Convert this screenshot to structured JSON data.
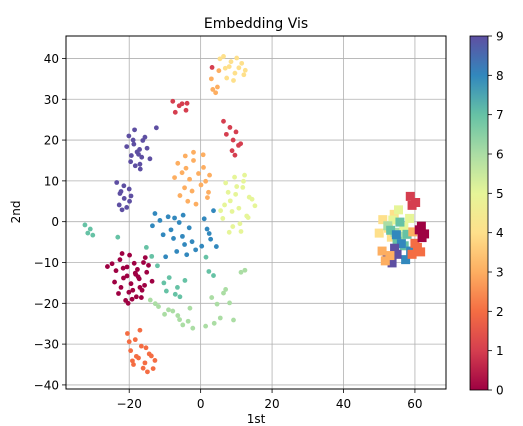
{
  "chart_data": {
    "type": "scatter",
    "title": "Embedding Vis",
    "xlabel": "1st",
    "ylabel": "2nd",
    "xlim": [
      -37.7,
      68.7
    ],
    "ylim": [
      -41.0,
      45.5
    ],
    "xticks": [
      -20,
      0,
      20,
      40,
      60
    ],
    "yticks": [
      -40,
      -30,
      -20,
      -10,
      0,
      10,
      20,
      30,
      40
    ],
    "grid": true,
    "colormap": "Spectral",
    "colorbar": {
      "min": 0,
      "max": 9,
      "ticks": [
        0,
        1,
        2,
        3,
        4,
        5,
        6,
        7,
        8,
        9
      ]
    },
    "palette": [
      "#9e0142",
      "#d53e4f",
      "#f46d43",
      "#fdae61",
      "#fee08b",
      "#e6f598",
      "#abdda4",
      "#66c2a5",
      "#3288bd",
      "#5e4fa2"
    ],
    "point_series": [
      {
        "label": 9,
        "marker": "circle",
        "x": [
          -18.5,
          -16.2,
          -19.4,
          -17.0,
          -15.0,
          -20.1,
          -17.8,
          -16.9,
          -14.2,
          -18.7,
          -19.6,
          -17.4,
          -15.6,
          -20.7,
          -18.3,
          -16.5,
          -17.1,
          -18.9,
          -21.5,
          -19.5,
          -22.8,
          -23.5,
          -20.7,
          -21.4,
          -22.3,
          -20.0,
          -22.0,
          -19.9,
          -22.6,
          -12.4
        ],
        "y": [
          22.5,
          19.9,
          16.2,
          14.1,
          18.0,
          21.0,
          17.1,
          12.9,
          15.4,
          19.0,
          14.7,
          16.5,
          20.7,
          18.4,
          13.7,
          15.8,
          17.7,
          20.0,
          8.8,
          6.3,
          4.1,
          9.6,
          3.5,
          5.7,
          7.4,
          8.0,
          2.9,
          5.0,
          6.9,
          23.0
        ]
      },
      {
        "label": 8,
        "marker": "circle",
        "x": [
          -12.8,
          -9.1,
          -6.0,
          -3.2,
          -10.5,
          -7.6,
          -4.5,
          -1.4,
          -11.4,
          -8.3,
          -5.1,
          -2.4,
          0.3,
          -6.7,
          -3.9,
          1.8,
          2.8,
          4.4,
          1.0,
          3.6,
          -9.8,
          -4.9,
          -13.5,
          2.4,
          -7.3
        ],
        "y": [
          2.0,
          1.2,
          -0.2,
          -1.5,
          -3.2,
          -4.1,
          -5.6,
          -6.9,
          0.3,
          -2.0,
          -3.6,
          -4.9,
          -6.0,
          -7.3,
          -8.1,
          -1.8,
          -4.3,
          -6.1,
          0.7,
          2.7,
          -8.6,
          1.6,
          -1.0,
          -2.9,
          0.9
        ]
      },
      {
        "label": 7,
        "marker": "circle",
        "x": [
          -32.4,
          -30.9,
          -31.6,
          -30.2,
          -23.2,
          -15.2,
          -12.1,
          -8.8,
          -6.5,
          -10.3,
          -7.1,
          -4.4,
          -9.6,
          -5.8,
          -13.7,
          2.3,
          3.6,
          1.5
        ],
        "y": [
          -0.8,
          -1.8,
          -2.8,
          -3.3,
          -3.8,
          -6.3,
          -10.8,
          -13.7,
          -16.1,
          -15.0,
          -17.8,
          -14.4,
          -17.0,
          -18.4,
          -8.5,
          -12.2,
          -13.2,
          -8.7
        ]
      },
      {
        "label": 6,
        "marker": "circle",
        "x": [
          -14.1,
          -11.8,
          -9.0,
          -6.4,
          -3.5,
          -12.7,
          -7.8,
          -5.0,
          -2.2,
          -10.1,
          -5.9,
          -3.0,
          3.1,
          4.6,
          6.4,
          8.1,
          5.5,
          3.8,
          7.0,
          1.4,
          11.3,
          12.4,
          9.2
        ],
        "y": [
          -19.2,
          -20.8,
          -21.6,
          -23.0,
          -24.4,
          -20.1,
          -21.9,
          -25.3,
          -26.1,
          -22.7,
          -24.0,
          -21.2,
          -18.6,
          -20.2,
          -17.5,
          -19.9,
          -23.6,
          -24.9,
          -16.6,
          -25.6,
          -12.4,
          -11.9,
          -24.1
        ]
      },
      {
        "label": 5,
        "marker": "circle",
        "x": [
          7.0,
          9.5,
          11.8,
          13.6,
          8.3,
          10.7,
          12.9,
          15.2,
          6.2,
          9.0,
          11.3,
          14.4,
          7.7,
          10.1,
          12.3,
          8.8,
          11.0,
          13.3,
          6.7,
          9.8,
          5.6,
          12.0,
          8.0
        ],
        "y": [
          9.5,
          10.9,
          8.4,
          6.0,
          5.1,
          3.3,
          1.4,
          3.9,
          0.8,
          -1.2,
          -2.4,
          5.5,
          7.2,
          8.6,
          11.4,
          2.5,
          -0.5,
          1.0,
          4.1,
          6.7,
          2.7,
          9.9,
          -2.6
        ]
      },
      {
        "label": 4,
        "marker": "circle",
        "x": [
          6.4,
          8.5,
          10.7,
          12.1,
          7.3,
          9.6,
          11.5,
          8.0,
          10.1,
          12.5,
          6.9,
          9.2,
          5.4
        ],
        "y": [
          40.5,
          39.2,
          37.7,
          36.0,
          35.2,
          36.4,
          38.8,
          38.0,
          40.1,
          37.1,
          37.6,
          34.6,
          39.9
        ]
      },
      {
        "label": 3,
        "marker": "circle",
        "x": [
          -6.4,
          -4.3,
          -2.0,
          0.8,
          2.5,
          -5.2,
          -3.1,
          -0.6,
          1.4,
          -7.3,
          -4.5,
          -2.4,
          0.1,
          -5.8,
          -3.6,
          -1.3,
          1.9,
          -4.1,
          -2.0,
          0.7,
          2.2,
          3.0,
          4.7,
          4.2,
          3.4,
          5.1
        ],
        "y": [
          14.3,
          16.1,
          15.0,
          13.3,
          11.4,
          12.0,
          10.4,
          11.8,
          9.9,
          10.8,
          8.3,
          7.5,
          9.0,
          6.4,
          5.0,
          4.3,
          5.9,
          13.1,
          17.0,
          16.4,
          7.2,
          35.0,
          33.0,
          31.6,
          32.4,
          37.0
        ]
      },
      {
        "label": 2,
        "marker": "circle",
        "x": [
          -20.5,
          -18.3,
          -16.6,
          -14.4,
          -19.6,
          -17.4,
          -15.6,
          -13.8,
          -18.8,
          -16.1,
          -14.9,
          -20.0,
          -17.0,
          -12.8,
          -15.3,
          -18.0,
          -13.3,
          -19.1
        ],
        "y": [
          -27.4,
          -28.9,
          -30.5,
          -32.4,
          -31.6,
          -33.4,
          -34.6,
          -32.9,
          -35.0,
          -35.9,
          -36.8,
          -29.4,
          -26.6,
          -34.0,
          -30.9,
          -33.0,
          -36.0,
          -34.1
        ]
      },
      {
        "label": 1,
        "marker": "circle",
        "x": [
          -7.8,
          -6.0,
          -4.1,
          -5.2,
          -7.1,
          -3.8,
          6.4,
          8.2,
          9.9,
          7.2,
          9.1,
          10.6,
          9.6,
          11.2,
          8.8,
          3.2
        ],
        "y": [
          29.5,
          28.4,
          27.3,
          28.9,
          26.8,
          29.0,
          24.6,
          23.1,
          22.0,
          21.4,
          20.0,
          18.7,
          16.3,
          19.1,
          17.4,
          37.8
        ]
      },
      {
        "label": 0,
        "marker": "circle",
        "x": [
          -24.8,
          -22.6,
          -20.6,
          -18.3,
          -16.0,
          -23.7,
          -21.6,
          -19.5,
          -17.2,
          -15.1,
          -22.3,
          -20.1,
          -18.0,
          -16.4,
          -21.0,
          -19.2,
          -17.7,
          -15.5,
          -13.6,
          -22.0,
          -24.1,
          -19.9,
          -17.0,
          -14.6,
          -20.6,
          -18.6,
          -16.6,
          -23.0,
          -19.0,
          -21.7,
          -15.7,
          -18.2,
          -20.3,
          -17.5,
          -26.1
        ],
        "y": [
          -10.3,
          -9.3,
          -11.1,
          -12.6,
          -10.0,
          -12.0,
          -13.8,
          -15.2,
          -14.0,
          -12.4,
          -16.1,
          -17.3,
          -18.4,
          -16.8,
          -19.3,
          -19.0,
          -11.7,
          -8.8,
          -14.6,
          -7.8,
          -14.8,
          -8.2,
          -16.1,
          -10.7,
          -13.3,
          -10.2,
          -18.6,
          -17.6,
          -16.8,
          -11.4,
          -15.6,
          -12.9,
          -20.0,
          -13.5,
          -11.0
        ]
      }
    ],
    "square_series": [
      {
        "label": 4,
        "marker": "square",
        "x": [
          51.0,
          52.6,
          54.2,
          50.0,
          53.4
        ],
        "y": [
          0.5,
          -1.6,
          1.8,
          -2.8,
          -3.8
        ]
      },
      {
        "label": 5,
        "marker": "square",
        "x": [
          55.4,
          53.8,
          56.9,
          58.5
        ],
        "y": [
          2.9,
          0.4,
          -1.2,
          0.8
        ]
      },
      {
        "label": 6,
        "marker": "square",
        "x": [
          54.4,
          56.2,
          52.4
        ],
        "y": [
          -2.6,
          -3.5,
          -1.0
        ]
      },
      {
        "label": 7,
        "marker": "square",
        "x": [
          55.0,
          57.8,
          53.2,
          57.0,
          55.8
        ],
        "y": [
          -4.8,
          -3.1,
          -2.1,
          -5.9,
          -0.1
        ]
      },
      {
        "label": 8,
        "marker": "square",
        "x": [
          56.2,
          58.8,
          54.8,
          57.4
        ],
        "y": [
          -5.4,
          -7.2,
          -3.2,
          -9.3
        ]
      },
      {
        "label": 9,
        "marker": "square",
        "x": [
          52.2,
          53.6,
          55.0,
          54.3
        ],
        "y": [
          -9.0,
          -10.1,
          -8.0,
          -6.5
        ]
      },
      {
        "label": 3,
        "marker": "square",
        "x": [
          50.8,
          53.0,
          51.7,
          59.4
        ],
        "y": [
          -7.2,
          -8.3,
          -9.6,
          -2.5
        ]
      },
      {
        "label": 2,
        "marker": "square",
        "x": [
          60.7,
          59.2,
          61.6,
          60.0
        ],
        "y": [
          -6.3,
          -8.0,
          -7.4,
          -5.3
        ]
      },
      {
        "label": 1,
        "marker": "square",
        "x": [
          58.7,
          60.2,
          59.2
        ],
        "y": [
          6.2,
          4.7,
          4.0
        ]
      },
      {
        "label": 0,
        "marker": "square",
        "x": [
          61.2,
          62.7,
          61.8,
          62.0
        ],
        "y": [
          -2.0,
          -3.0,
          -1.1,
          -3.9
        ]
      }
    ]
  }
}
